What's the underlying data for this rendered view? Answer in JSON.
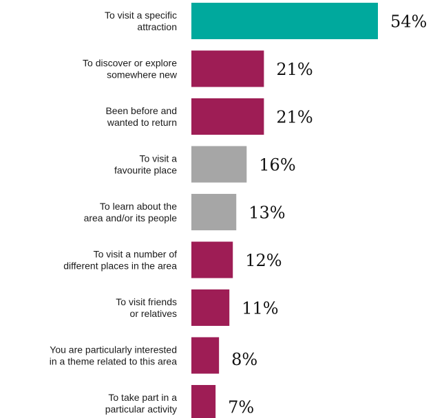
{
  "chart_data": {
    "type": "bar",
    "orientation": "horizontal",
    "title": "",
    "xlabel": "",
    "ylabel": "",
    "xlim": [
      0,
      54
    ],
    "grid": false,
    "legend": "none",
    "value_suffix": "%",
    "categories": [
      [
        "To visit a specific",
        "attraction"
      ],
      [
        "To discover or explore",
        "somewhere new"
      ],
      [
        "Been before and",
        "wanted to return"
      ],
      [
        "To visit a",
        "favourite place"
      ],
      [
        "To learn about the",
        "area and/or its people"
      ],
      [
        "To visit a number of",
        "different places in the area"
      ],
      [
        "To visit friends",
        "or relatives"
      ],
      [
        "You are particularly interested",
        "in a theme related to this area"
      ],
      [
        "To take part in a",
        "particular activity"
      ]
    ],
    "values": [
      54,
      21,
      21,
      16,
      13,
      12,
      11,
      8,
      7
    ],
    "colors": [
      "#00a99d",
      "#9e1d55",
      "#9e1d55",
      "#a6a6a6",
      "#a6a6a6",
      "#9e1d55",
      "#9e1d55",
      "#9e1d55",
      "#9e1d55"
    ]
  }
}
